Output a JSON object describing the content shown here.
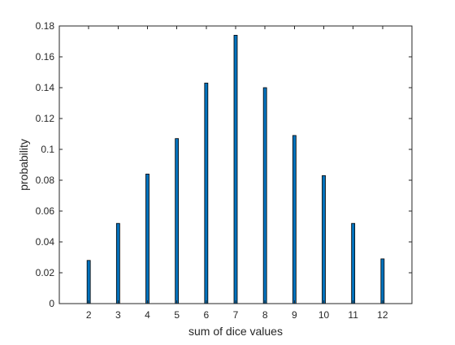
{
  "chart_data": {
    "type": "bar",
    "title": "",
    "xlabel": "sum of dice values",
    "ylabel": "probability",
    "categories": [
      "2",
      "3",
      "4",
      "5",
      "6",
      "7",
      "8",
      "9",
      "10",
      "11",
      "12"
    ],
    "x": [
      2,
      3,
      4,
      5,
      6,
      7,
      8,
      9,
      10,
      11,
      12
    ],
    "values": [
      0.028,
      0.052,
      0.084,
      0.107,
      0.143,
      0.174,
      0.14,
      0.109,
      0.083,
      0.052,
      0.029
    ],
    "xlim": [
      1,
      13
    ],
    "ylim": [
      0,
      0.18
    ],
    "yticks": [
      0,
      0.02,
      0.04,
      0.06,
      0.08,
      0.1,
      0.12,
      0.14,
      0.16,
      0.18
    ],
    "ytick_labels": [
      "0",
      "0.02",
      "0.04",
      "0.06",
      "0.08",
      "0.1",
      "0.12",
      "0.14",
      "0.16",
      "0.18"
    ],
    "grid": false,
    "legend": "none",
    "bar_color": "#0072BD",
    "edge_color": "#000000",
    "axis_color": "#262626"
  }
}
